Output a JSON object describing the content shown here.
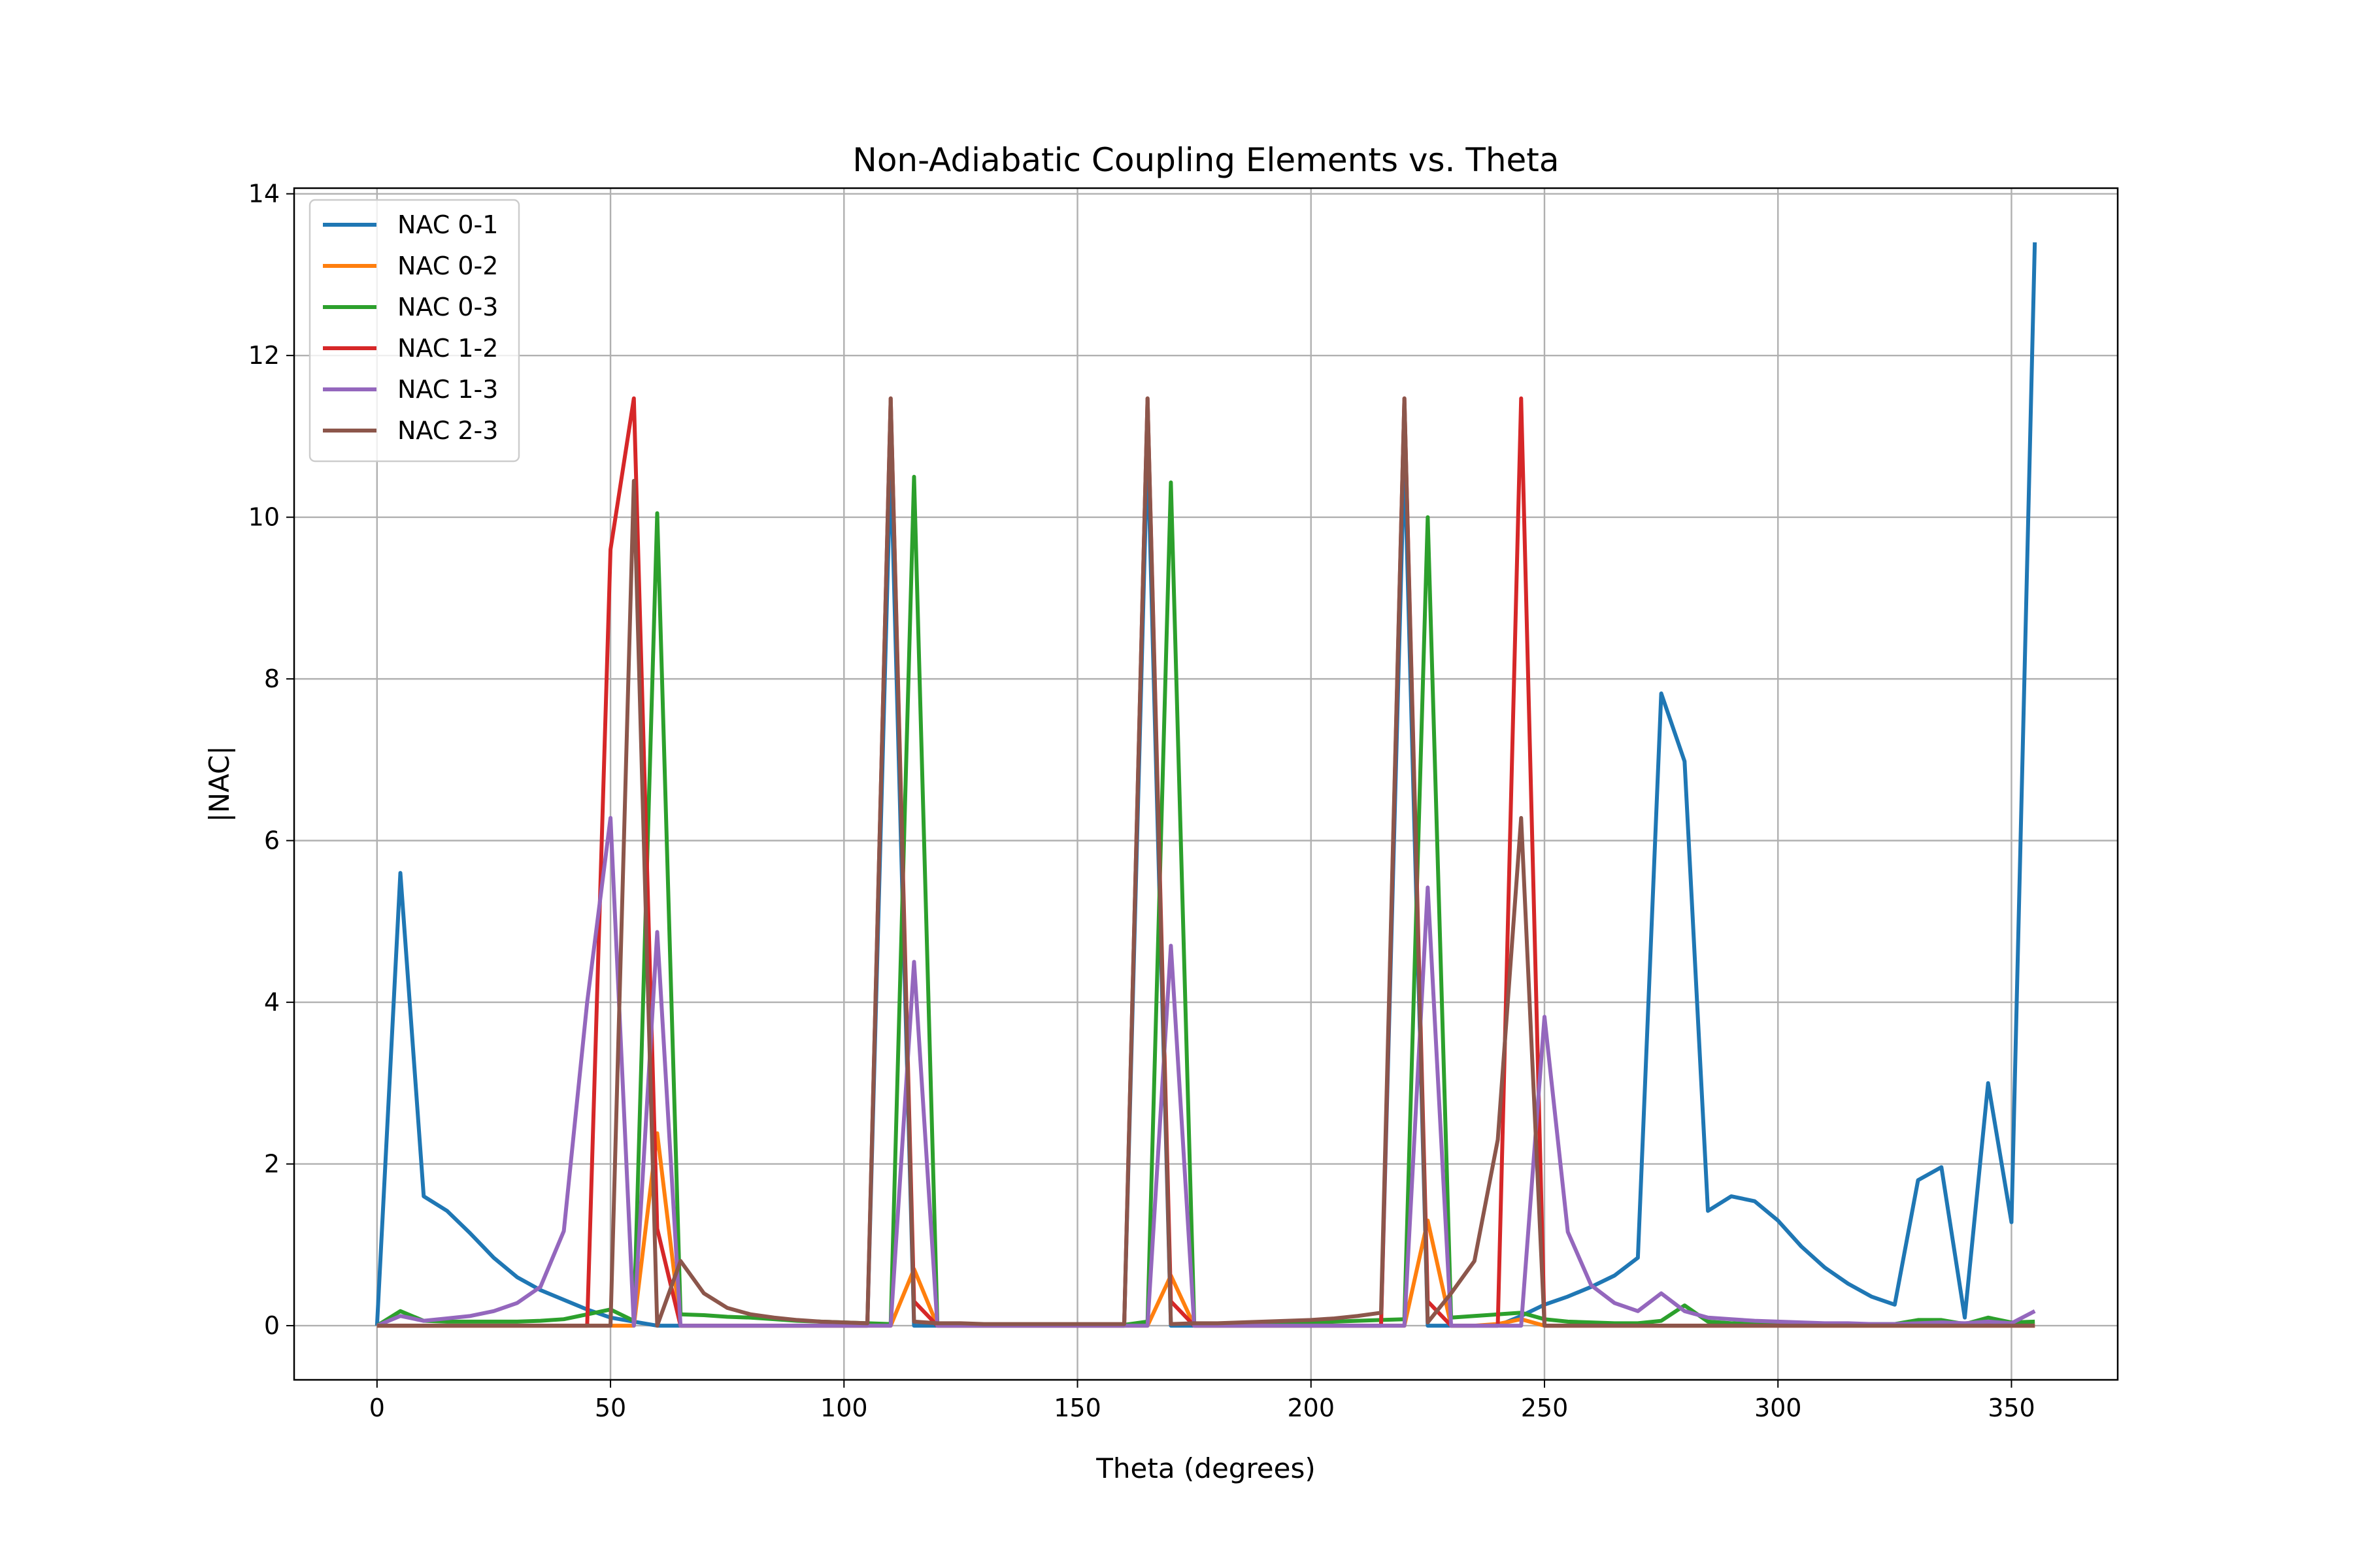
{
  "chart_data": {
    "type": "line",
    "title": "Non-Adiabatic Coupling Elements vs. Theta",
    "xlabel": "Theta (degrees)",
    "ylabel": "|NAC|",
    "xlim": [
      -17.75,
      372.75
    ],
    "ylim": [
      -0.67,
      14.07
    ],
    "xticks": [
      0,
      50,
      100,
      150,
      200,
      250,
      300,
      350
    ],
    "yticks": [
      0,
      2,
      4,
      6,
      8,
      10,
      12,
      14
    ],
    "grid": true,
    "legend_position": "upper-left",
    "x": [
      0,
      5,
      10,
      15,
      20,
      25,
      30,
      35,
      40,
      45,
      50,
      55,
      60,
      65,
      70,
      75,
      80,
      85,
      90,
      95,
      100,
      105,
      110,
      115,
      120,
      125,
      130,
      135,
      140,
      145,
      150,
      155,
      160,
      165,
      170,
      175,
      180,
      185,
      190,
      195,
      200,
      205,
      210,
      215,
      220,
      225,
      230,
      235,
      240,
      245,
      250,
      255,
      260,
      265,
      270,
      275,
      280,
      285,
      290,
      295,
      300,
      305,
      310,
      315,
      320,
      325,
      330,
      335,
      340,
      345,
      350,
      355
    ],
    "series": [
      {
        "name": "NAC 0-1",
        "color": "#1f77b4",
        "values": [
          0,
          5.6,
          1.6,
          1.42,
          1.14,
          0.84,
          0.6,
          0.44,
          0.32,
          0.2,
          0.1,
          0.05,
          0,
          0,
          0,
          0,
          0,
          0,
          0,
          0,
          0,
          0,
          10.7,
          0,
          0,
          0,
          0,
          0,
          0,
          0,
          0,
          0,
          0,
          10.9,
          0,
          0,
          0,
          0,
          0,
          0,
          0,
          0,
          0,
          0,
          10.8,
          0,
          0,
          0,
          0,
          0.12,
          0.26,
          0.36,
          0.48,
          0.62,
          0.84,
          7.82,
          6.98,
          1.42,
          1.6,
          1.54,
          1.3,
          0.98,
          0.72,
          0.52,
          0.36,
          0.26,
          1.8,
          1.96,
          0.1,
          3.0,
          1.28,
          13.4
        ]
      },
      {
        "name": "NAC 0-2",
        "color": "#ff7f0e",
        "values": [
          0,
          0,
          0,
          0,
          0,
          0,
          0,
          0,
          0,
          0,
          0,
          0,
          2.38,
          0,
          0,
          0,
          0,
          0,
          0,
          0,
          0,
          0,
          0,
          0.7,
          0,
          0,
          0,
          0,
          0,
          0,
          0,
          0,
          0,
          0,
          0.62,
          0,
          0,
          0,
          0,
          0,
          0,
          0,
          0,
          0,
          0,
          1.3,
          0,
          0,
          0.02,
          0.08,
          0,
          0,
          0,
          0,
          0,
          0,
          0,
          0,
          0,
          0,
          0,
          0,
          0,
          0,
          0,
          0,
          0,
          0,
          0,
          0,
          0,
          0
        ]
      },
      {
        "name": "NAC 0-3",
        "color": "#2ca02c",
        "values": [
          0,
          0.18,
          0.06,
          0.05,
          0.05,
          0.05,
          0.05,
          0.06,
          0.08,
          0.14,
          0.2,
          0.06,
          10.05,
          0.14,
          0.13,
          0.11,
          0.1,
          0.08,
          0.06,
          0.05,
          0.04,
          0.03,
          0.02,
          10.5,
          0.02,
          0.02,
          0.01,
          0.01,
          0.01,
          0.01,
          0.01,
          0.01,
          0.01,
          0.05,
          10.43,
          0.02,
          0.02,
          0.02,
          0.03,
          0.03,
          0.04,
          0.05,
          0.06,
          0.07,
          0.08,
          10.0,
          0.1,
          0.12,
          0.14,
          0.16,
          0.08,
          0.05,
          0.04,
          0.03,
          0.03,
          0.06,
          0.25,
          0.05,
          0.03,
          0.02,
          0.02,
          0.02,
          0.02,
          0.02,
          0.02,
          0.02,
          0.07,
          0.07,
          0.02,
          0.1,
          0.04,
          0.05
        ]
      },
      {
        "name": "NAC 1-2",
        "color": "#d62728",
        "values": [
          0,
          0,
          0,
          0,
          0,
          0,
          0,
          0,
          0,
          0,
          9.6,
          11.47,
          1.2,
          0,
          0,
          0,
          0,
          0,
          0,
          0,
          0,
          0,
          11.47,
          0.3,
          0,
          0,
          0,
          0,
          0,
          0,
          0,
          0,
          0,
          11.47,
          0.3,
          0,
          0,
          0,
          0,
          0,
          0,
          0,
          0,
          0,
          11.47,
          0.3,
          0,
          0,
          0,
          11.47,
          0,
          0,
          0,
          0,
          0,
          0,
          0,
          0,
          0,
          0,
          0,
          0,
          0,
          0,
          0,
          0,
          0,
          0,
          0,
          0,
          0,
          0
        ]
      },
      {
        "name": "NAC 1-3",
        "color": "#9467bd",
        "values": [
          0,
          0.12,
          0.06,
          0.09,
          0.12,
          0.18,
          0.28,
          0.48,
          1.17,
          4.0,
          6.28,
          0,
          4.87,
          0,
          0,
          0,
          0,
          0,
          0,
          0,
          0,
          0,
          0,
          4.5,
          0,
          0,
          0,
          0,
          0,
          0,
          0,
          0,
          0,
          0,
          4.7,
          0,
          0,
          0,
          0,
          0,
          0,
          0,
          0,
          0,
          0,
          5.42,
          0,
          0,
          0,
          0,
          3.82,
          1.16,
          0.5,
          0.28,
          0.18,
          0.4,
          0.18,
          0.1,
          0.08,
          0.06,
          0.05,
          0.04,
          0.03,
          0.03,
          0.02,
          0.02,
          0.03,
          0.04,
          0.03,
          0.05,
          0.03,
          0.18
        ]
      },
      {
        "name": "NAC 2-3",
        "color": "#8c564b",
        "values": [
          0,
          0,
          0,
          0,
          0,
          0,
          0,
          0,
          0,
          0,
          0,
          10.45,
          0,
          0.8,
          0.4,
          0.22,
          0.14,
          0.1,
          0.07,
          0.05,
          0.04,
          0.03,
          11.47,
          0.05,
          0.03,
          0.03,
          0.02,
          0.02,
          0.02,
          0.02,
          0.02,
          0.02,
          0.02,
          11.47,
          0.02,
          0.03,
          0.03,
          0.04,
          0.05,
          0.06,
          0.07,
          0.09,
          0.12,
          0.16,
          11.47,
          0.04,
          0.4,
          0.8,
          2.3,
          6.28,
          0,
          0,
          0,
          0,
          0,
          0,
          0,
          0,
          0,
          0,
          0,
          0,
          0,
          0,
          0,
          0,
          0,
          0,
          0,
          0,
          0,
          0
        ]
      }
    ]
  }
}
